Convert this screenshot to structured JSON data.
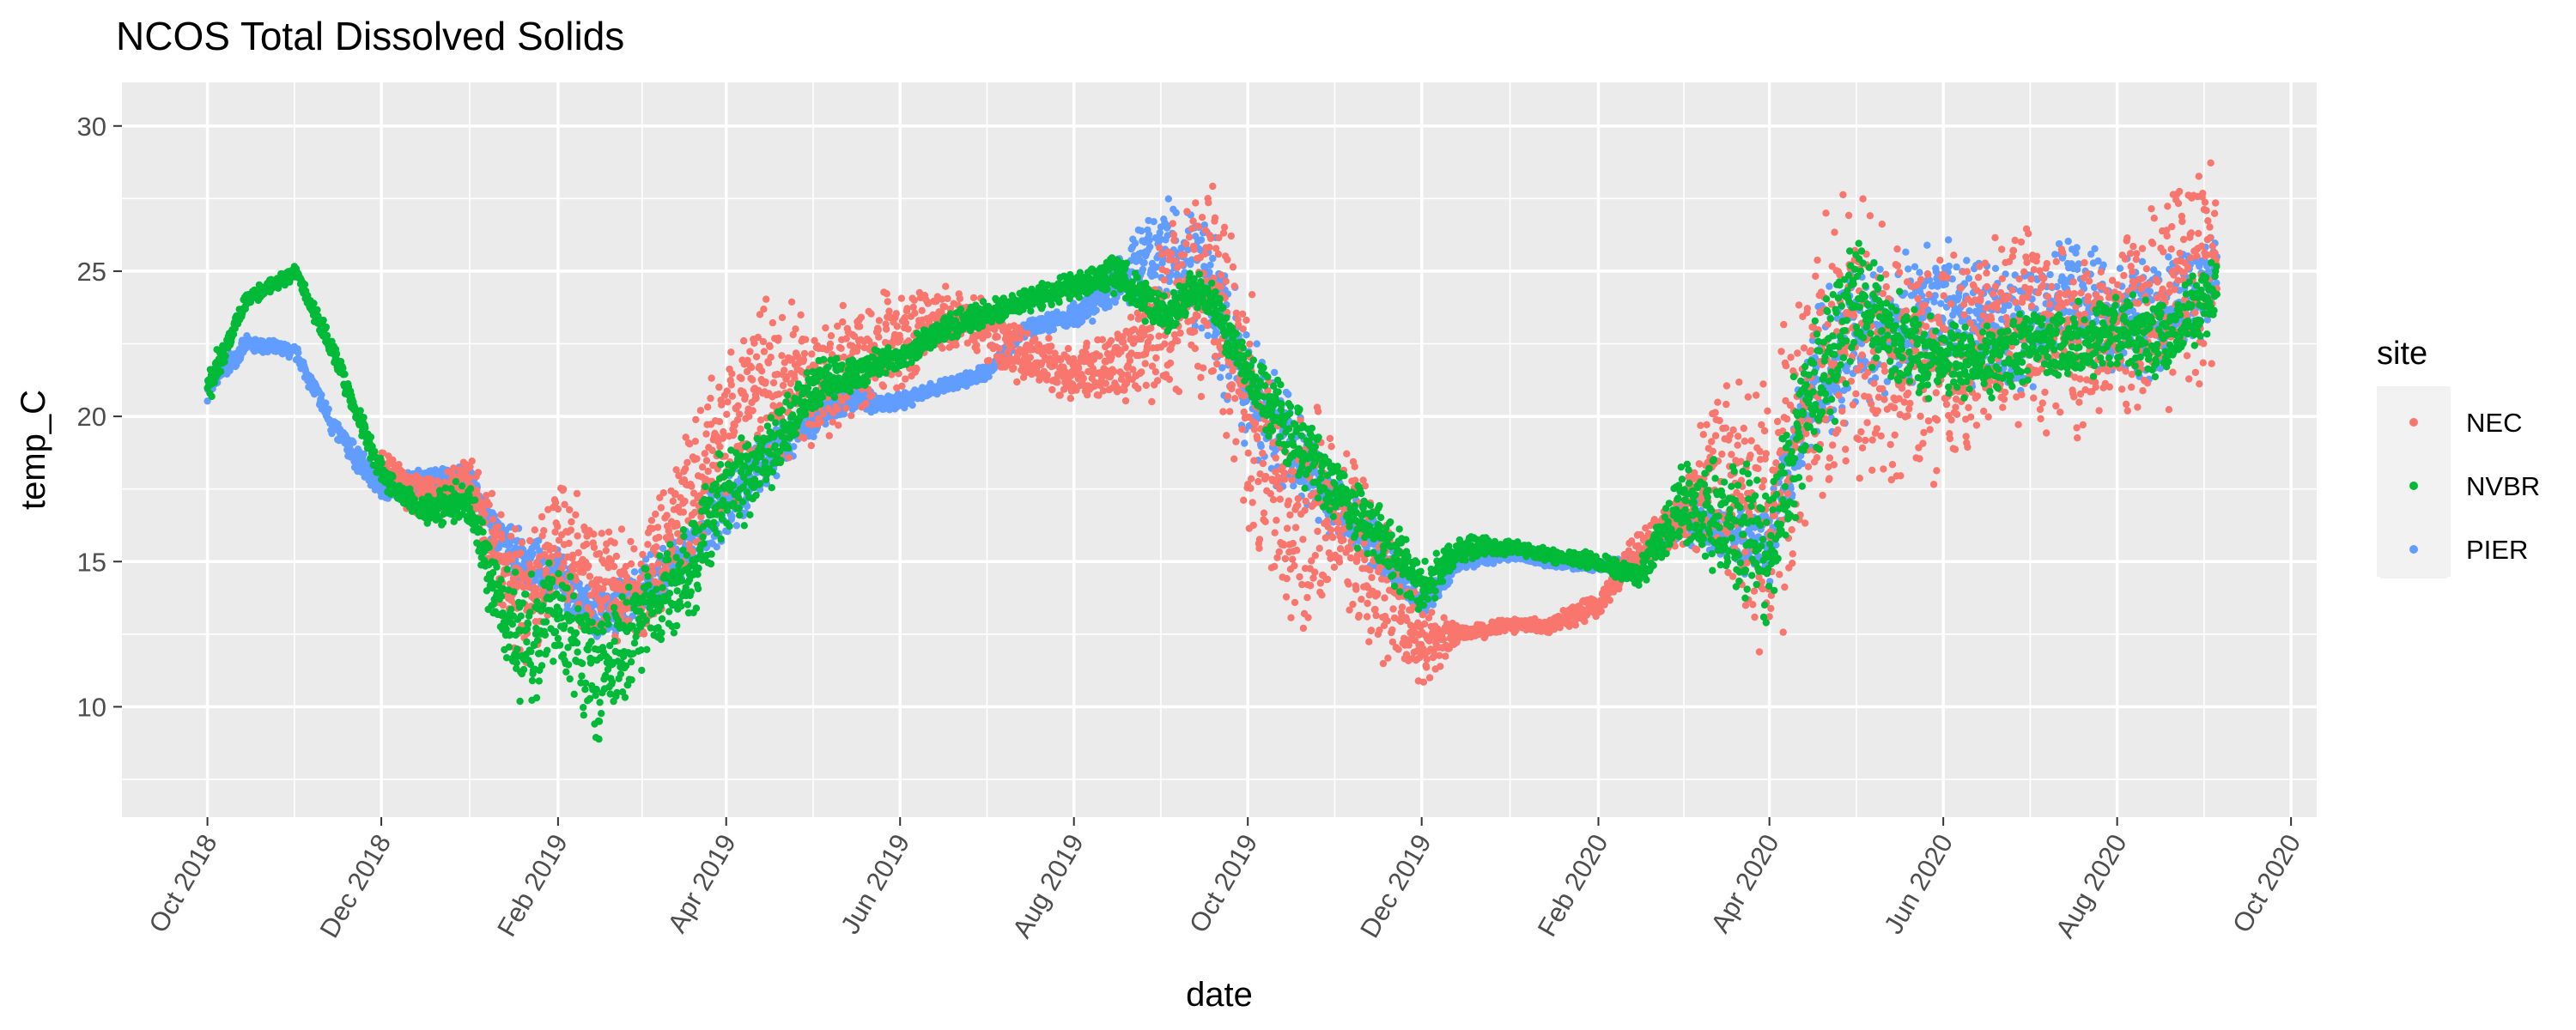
{
  "chart_data": {
    "type": "scatter",
    "title": "NCOS Total Dissolved Solids",
    "xlabel": "date",
    "ylabel": "temp_C",
    "xlim": [
      "2018-09-01",
      "2020-10-10"
    ],
    "ylim": [
      6.2,
      31.5
    ],
    "x_ticks": [
      "2018-10-01",
      "2018-12-01",
      "2019-02-01",
      "2019-04-01",
      "2019-06-01",
      "2019-08-01",
      "2019-10-01",
      "2019-12-01",
      "2020-02-01",
      "2020-04-01",
      "2020-06-01",
      "2020-08-01",
      "2020-10-01"
    ],
    "x_tick_labels": [
      "Oct 2018",
      "Dec 2018",
      "Feb 2019",
      "Apr 2019",
      "Jun 2019",
      "Aug 2019",
      "Oct 2019",
      "Dec 2019",
      "Feb 2020",
      "Apr 2020",
      "Jun 2020",
      "Aug 2020",
      "Oct 2020"
    ],
    "y_ticks": [
      10,
      15,
      20,
      25,
      30
    ],
    "y_tick_labels": [
      "10",
      "15",
      "20",
      "25",
      "30"
    ],
    "grid": true,
    "legend": {
      "title": "site",
      "position": "right"
    },
    "series": [
      {
        "name": "NEC",
        "color": "#F8766D",
        "x": [
          "2018-12-01",
          "2018-12-10",
          "2018-12-20",
          "2019-01-01",
          "2019-01-10",
          "2019-01-20",
          "2019-02-01",
          "2019-02-15",
          "2019-03-01",
          "2019-03-15",
          "2019-04-01",
          "2019-04-15",
          "2019-05-01",
          "2019-05-15",
          "2019-06-01",
          "2019-06-15",
          "2019-07-01",
          "2019-07-15",
          "2019-08-01",
          "2019-08-20",
          "2019-09-05",
          "2019-09-20",
          "2019-10-01",
          "2019-10-15",
          "2019-11-01",
          "2019-11-15",
          "2019-12-01",
          "2019-12-15",
          "2020-01-01",
          "2020-01-15",
          "2020-02-01",
          "2020-02-15",
          "2020-03-01",
          "2020-03-15",
          "2020-04-01",
          "2020-04-15",
          "2020-05-01",
          "2020-05-15",
          "2020-06-01",
          "2020-06-15",
          "2020-07-01",
          "2020-07-15",
          "2020-08-01",
          "2020-08-15",
          "2020-09-01",
          "2020-09-05"
        ],
        "y": [
          18.5,
          17.5,
          17.2,
          17.8,
          15.5,
          13.5,
          15.5,
          14.5,
          13.5,
          16.5,
          19.5,
          21.5,
          21.0,
          22.0,
          22.5,
          23.5,
          23.0,
          22.0,
          21.5,
          21.8,
          24.0,
          24.5,
          20.0,
          17.0,
          16.5,
          14.5,
          12.0,
          12.5,
          12.8,
          12.8,
          13.5,
          15.5,
          16.5,
          18.0,
          16.0,
          21.0,
          23.0,
          22.0,
          21.5,
          22.5,
          23.0,
          22.5,
          23.0,
          24.0,
          25.0,
          25.5
        ],
        "spread": [
          0.5,
          0.8,
          0.8,
          0.8,
          2.0,
          2.5,
          2.5,
          2.5,
          2.5,
          2.5,
          3.0,
          3.5,
          3.0,
          2.5,
          2.0,
          1.5,
          1.2,
          1.2,
          1.0,
          1.5,
          3.5,
          4.5,
          5.0,
          4.5,
          4.0,
          3.5,
          1.5,
          0.3,
          0.3,
          0.3,
          0.5,
          0.8,
          1.0,
          4.0,
          6.0,
          5.5,
          5.5,
          5.0,
          4.0,
          4.0,
          4.0,
          3.5,
          3.5,
          4.0,
          4.5,
          4.0
        ]
      },
      {
        "name": "NVBR",
        "color": "#00BA38",
        "x": [
          "2018-10-01",
          "2018-10-15",
          "2018-11-01",
          "2018-11-15",
          "2018-12-01",
          "2018-12-15",
          "2019-01-01",
          "2019-01-10",
          "2019-01-20",
          "2019-02-01",
          "2019-02-15",
          "2019-03-01",
          "2019-03-15",
          "2019-04-01",
          "2019-04-15",
          "2019-05-01",
          "2019-05-15",
          "2019-06-01",
          "2019-06-15",
          "2019-07-01",
          "2019-07-15",
          "2019-08-01",
          "2019-08-15",
          "2019-09-01",
          "2019-09-15",
          "2019-10-01",
          "2019-10-15",
          "2019-11-01",
          "2019-11-15",
          "2019-12-01",
          "2019-12-15",
          "2020-01-01",
          "2020-01-15",
          "2020-02-01",
          "2020-02-15",
          "2020-03-01",
          "2020-03-15",
          "2020-04-01",
          "2020-04-15",
          "2020-05-01",
          "2020-05-15",
          "2020-06-01",
          "2020-06-15",
          "2020-07-01",
          "2020-07-15",
          "2020-08-01",
          "2020-08-15",
          "2020-09-01",
          "2020-09-05"
        ],
        "y": [
          21.0,
          24.0,
          25.0,
          22.0,
          18.0,
          16.8,
          17.0,
          14.0,
          12.0,
          13.5,
          11.0,
          13.0,
          14.0,
          17.5,
          18.5,
          21.0,
          21.5,
          22.0,
          23.0,
          23.5,
          24.0,
          24.5,
          25.0,
          23.5,
          24.5,
          21.5,
          19.5,
          17.5,
          16.0,
          14.0,
          15.5,
          15.5,
          15.2,
          15.0,
          14.5,
          17.0,
          16.5,
          15.5,
          20.5,
          24.0,
          22.5,
          22.0,
          22.0,
          22.5,
          22.5,
          23.0,
          22.5,
          24.0,
          24.5
        ],
        "spread": [
          0.8,
          0.3,
          0.3,
          0.5,
          0.5,
          0.5,
          1.0,
          2.0,
          2.5,
          2.5,
          2.5,
          2.0,
          2.0,
          2.0,
          1.5,
          1.0,
          0.8,
          0.5,
          0.5,
          0.5,
          0.5,
          0.5,
          0.8,
          0.8,
          0.8,
          1.0,
          1.5,
          1.5,
          1.5,
          1.0,
          0.5,
          0.3,
          0.3,
          0.3,
          0.5,
          1.5,
          2.5,
          3.0,
          3.0,
          2.5,
          2.0,
          1.5,
          1.5,
          1.5,
          1.5,
          1.5,
          1.5,
          1.5,
          1.0
        ]
      },
      {
        "name": "PIER",
        "color": "#619CFF",
        "x": [
          "2018-10-01",
          "2018-10-15",
          "2018-11-01",
          "2018-11-15",
          "2018-12-01",
          "2018-12-15",
          "2019-01-01",
          "2019-01-10",
          "2019-01-20",
          "2019-02-01",
          "2019-02-15",
          "2019-03-01",
          "2019-03-15",
          "2019-04-01",
          "2019-04-15",
          "2019-05-01",
          "2019-05-15",
          "2019-06-01",
          "2019-06-15",
          "2019-07-01",
          "2019-07-15",
          "2019-08-01",
          "2019-08-15",
          "2019-09-01",
          "2019-09-15",
          "2019-10-01",
          "2019-10-15",
          "2019-11-01",
          "2019-11-15",
          "2019-12-01",
          "2019-12-15",
          "2020-01-01",
          "2020-01-15",
          "2020-02-01",
          "2020-02-15",
          "2020-03-01",
          "2020-04-01",
          "2020-04-15",
          "2020-05-01",
          "2020-05-15",
          "2020-06-01",
          "2020-06-15",
          "2020-07-01",
          "2020-07-15",
          "2020-08-01",
          "2020-08-15",
          "2020-09-01",
          "2020-09-05"
        ],
        "y": [
          21.0,
          22.5,
          22.2,
          19.5,
          17.5,
          17.8,
          18.0,
          16.0,
          15.0,
          14.5,
          13.0,
          14.0,
          15.0,
          17.0,
          18.5,
          20.0,
          20.5,
          20.5,
          21.0,
          21.5,
          23.0,
          23.5,
          24.5,
          26.0,
          25.0,
          21.0,
          19.0,
          17.0,
          15.5,
          13.5,
          15.0,
          15.2,
          15.0,
          14.8,
          15.0,
          16.5,
          15.5,
          21.0,
          23.0,
          23.0,
          24.0,
          23.0,
          23.0,
          24.0,
          23.5,
          23.5,
          24.5,
          25.0
        ],
        "spread": [
          0.5,
          0.3,
          0.3,
          0.5,
          0.5,
          0.5,
          0.3,
          0.8,
          1.0,
          1.0,
          1.0,
          1.0,
          1.0,
          1.5,
          1.0,
          0.8,
          0.5,
          0.3,
          0.3,
          0.3,
          0.3,
          0.5,
          1.0,
          2.0,
          2.5,
          2.5,
          2.0,
          1.5,
          1.0,
          0.5,
          0.3,
          0.2,
          0.2,
          0.2,
          0.3,
          0.8,
          1.5,
          2.5,
          3.0,
          2.5,
          2.5,
          2.5,
          2.5,
          2.5,
          2.5,
          2.5,
          2.0,
          1.5
        ]
      }
    ]
  }
}
